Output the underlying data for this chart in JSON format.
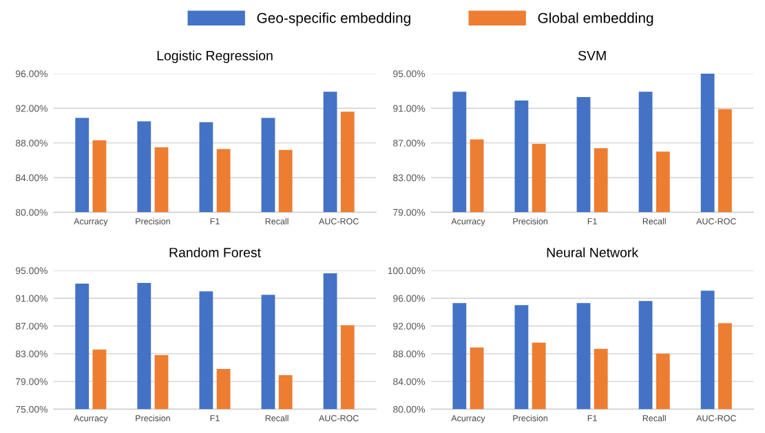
{
  "chart_data": [
    {
      "type": "bar",
      "title": "Logistic Regression",
      "categories": [
        "Acurracy",
        "Precision",
        "F1",
        "Recall",
        "AUC-ROC"
      ],
      "series": [
        {
          "name": "Geo-specific embedding",
          "color": "#4472c4",
          "values": [
            90.9,
            90.5,
            90.4,
            90.9,
            93.9
          ]
        },
        {
          "name": "Global embedding",
          "color": "#ed7d31",
          "values": [
            88.3,
            87.5,
            87.3,
            87.2,
            91.6
          ]
        }
      ],
      "ylim": [
        80,
        96
      ],
      "yticks": [
        {
          "value": 80,
          "label": "80.00%"
        },
        {
          "value": 84,
          "label": "84.00%"
        },
        {
          "value": 88,
          "label": "88.00%"
        },
        {
          "value": 92,
          "label": "92.00%"
        },
        {
          "value": 96,
          "label": "96.00%"
        }
      ],
      "grid": "y",
      "legend": "top"
    },
    {
      "type": "bar",
      "title": "SVM",
      "categories": [
        "Acurracy",
        "Precision",
        "F1",
        "Recall",
        "AUC-ROC"
      ],
      "series": [
        {
          "color": "#4472c4",
          "values": [
            92.9,
            91.9,
            92.3,
            92.9,
            95.0
          ]
        },
        {
          "color": "#ed7d31",
          "values": [
            87.4,
            86.9,
            86.4,
            86.0,
            90.9
          ]
        }
      ],
      "ylim": [
        79,
        95
      ],
      "yticks": [
        {
          "value": 79,
          "label": "79.00%"
        },
        {
          "value": 83,
          "label": "83.00%"
        },
        {
          "value": 87,
          "label": "87.00%"
        },
        {
          "value": 91,
          "label": "91.00%"
        },
        {
          "value": 95,
          "label": "95.00%"
        }
      ],
      "grid": "y"
    },
    {
      "type": "bar",
      "title": "Random Forest",
      "categories": [
        "Acurracy",
        "Precision",
        "F1",
        "Recall",
        "AUC-ROC"
      ],
      "series": [
        {
          "color": "#4472c4",
          "values": [
            93.1,
            93.2,
            92.0,
            91.5,
            94.6
          ]
        },
        {
          "color": "#ed7d31",
          "values": [
            83.6,
            82.8,
            80.8,
            79.9,
            87.1
          ]
        }
      ],
      "ylim": [
        75,
        95
      ],
      "yticks": [
        {
          "value": 75,
          "label": "75.00%"
        },
        {
          "value": 79,
          "label": "79.00%"
        },
        {
          "value": 83,
          "label": "83.00%"
        },
        {
          "value": 87,
          "label": "87.00%"
        },
        {
          "value": 91,
          "label": "91.00%"
        },
        {
          "value": 95,
          "label": "95.00%"
        }
      ],
      "grid": "y"
    },
    {
      "type": "bar",
      "title": "Neural Network",
      "categories": [
        "Acurracy",
        "Precision",
        "F1",
        "Recall",
        "AUC-ROC"
      ],
      "series": [
        {
          "color": "#4472c4",
          "values": [
            95.3,
            95.0,
            95.3,
            95.6,
            97.1
          ]
        },
        {
          "color": "#ed7d31",
          "values": [
            88.9,
            89.6,
            88.7,
            88.0,
            92.4
          ]
        }
      ],
      "ylim": [
        80,
        100
      ],
      "yticks": [
        {
          "value": 80,
          "label": "80.00%"
        },
        {
          "value": 84,
          "label": "84.00%"
        },
        {
          "value": 88,
          "label": "88.00%"
        },
        {
          "value": 92,
          "label": "92.00%"
        },
        {
          "value": 96,
          "label": "96.00%"
        },
        {
          "value": 100,
          "label": "100.00%"
        }
      ],
      "grid": "y"
    }
  ]
}
